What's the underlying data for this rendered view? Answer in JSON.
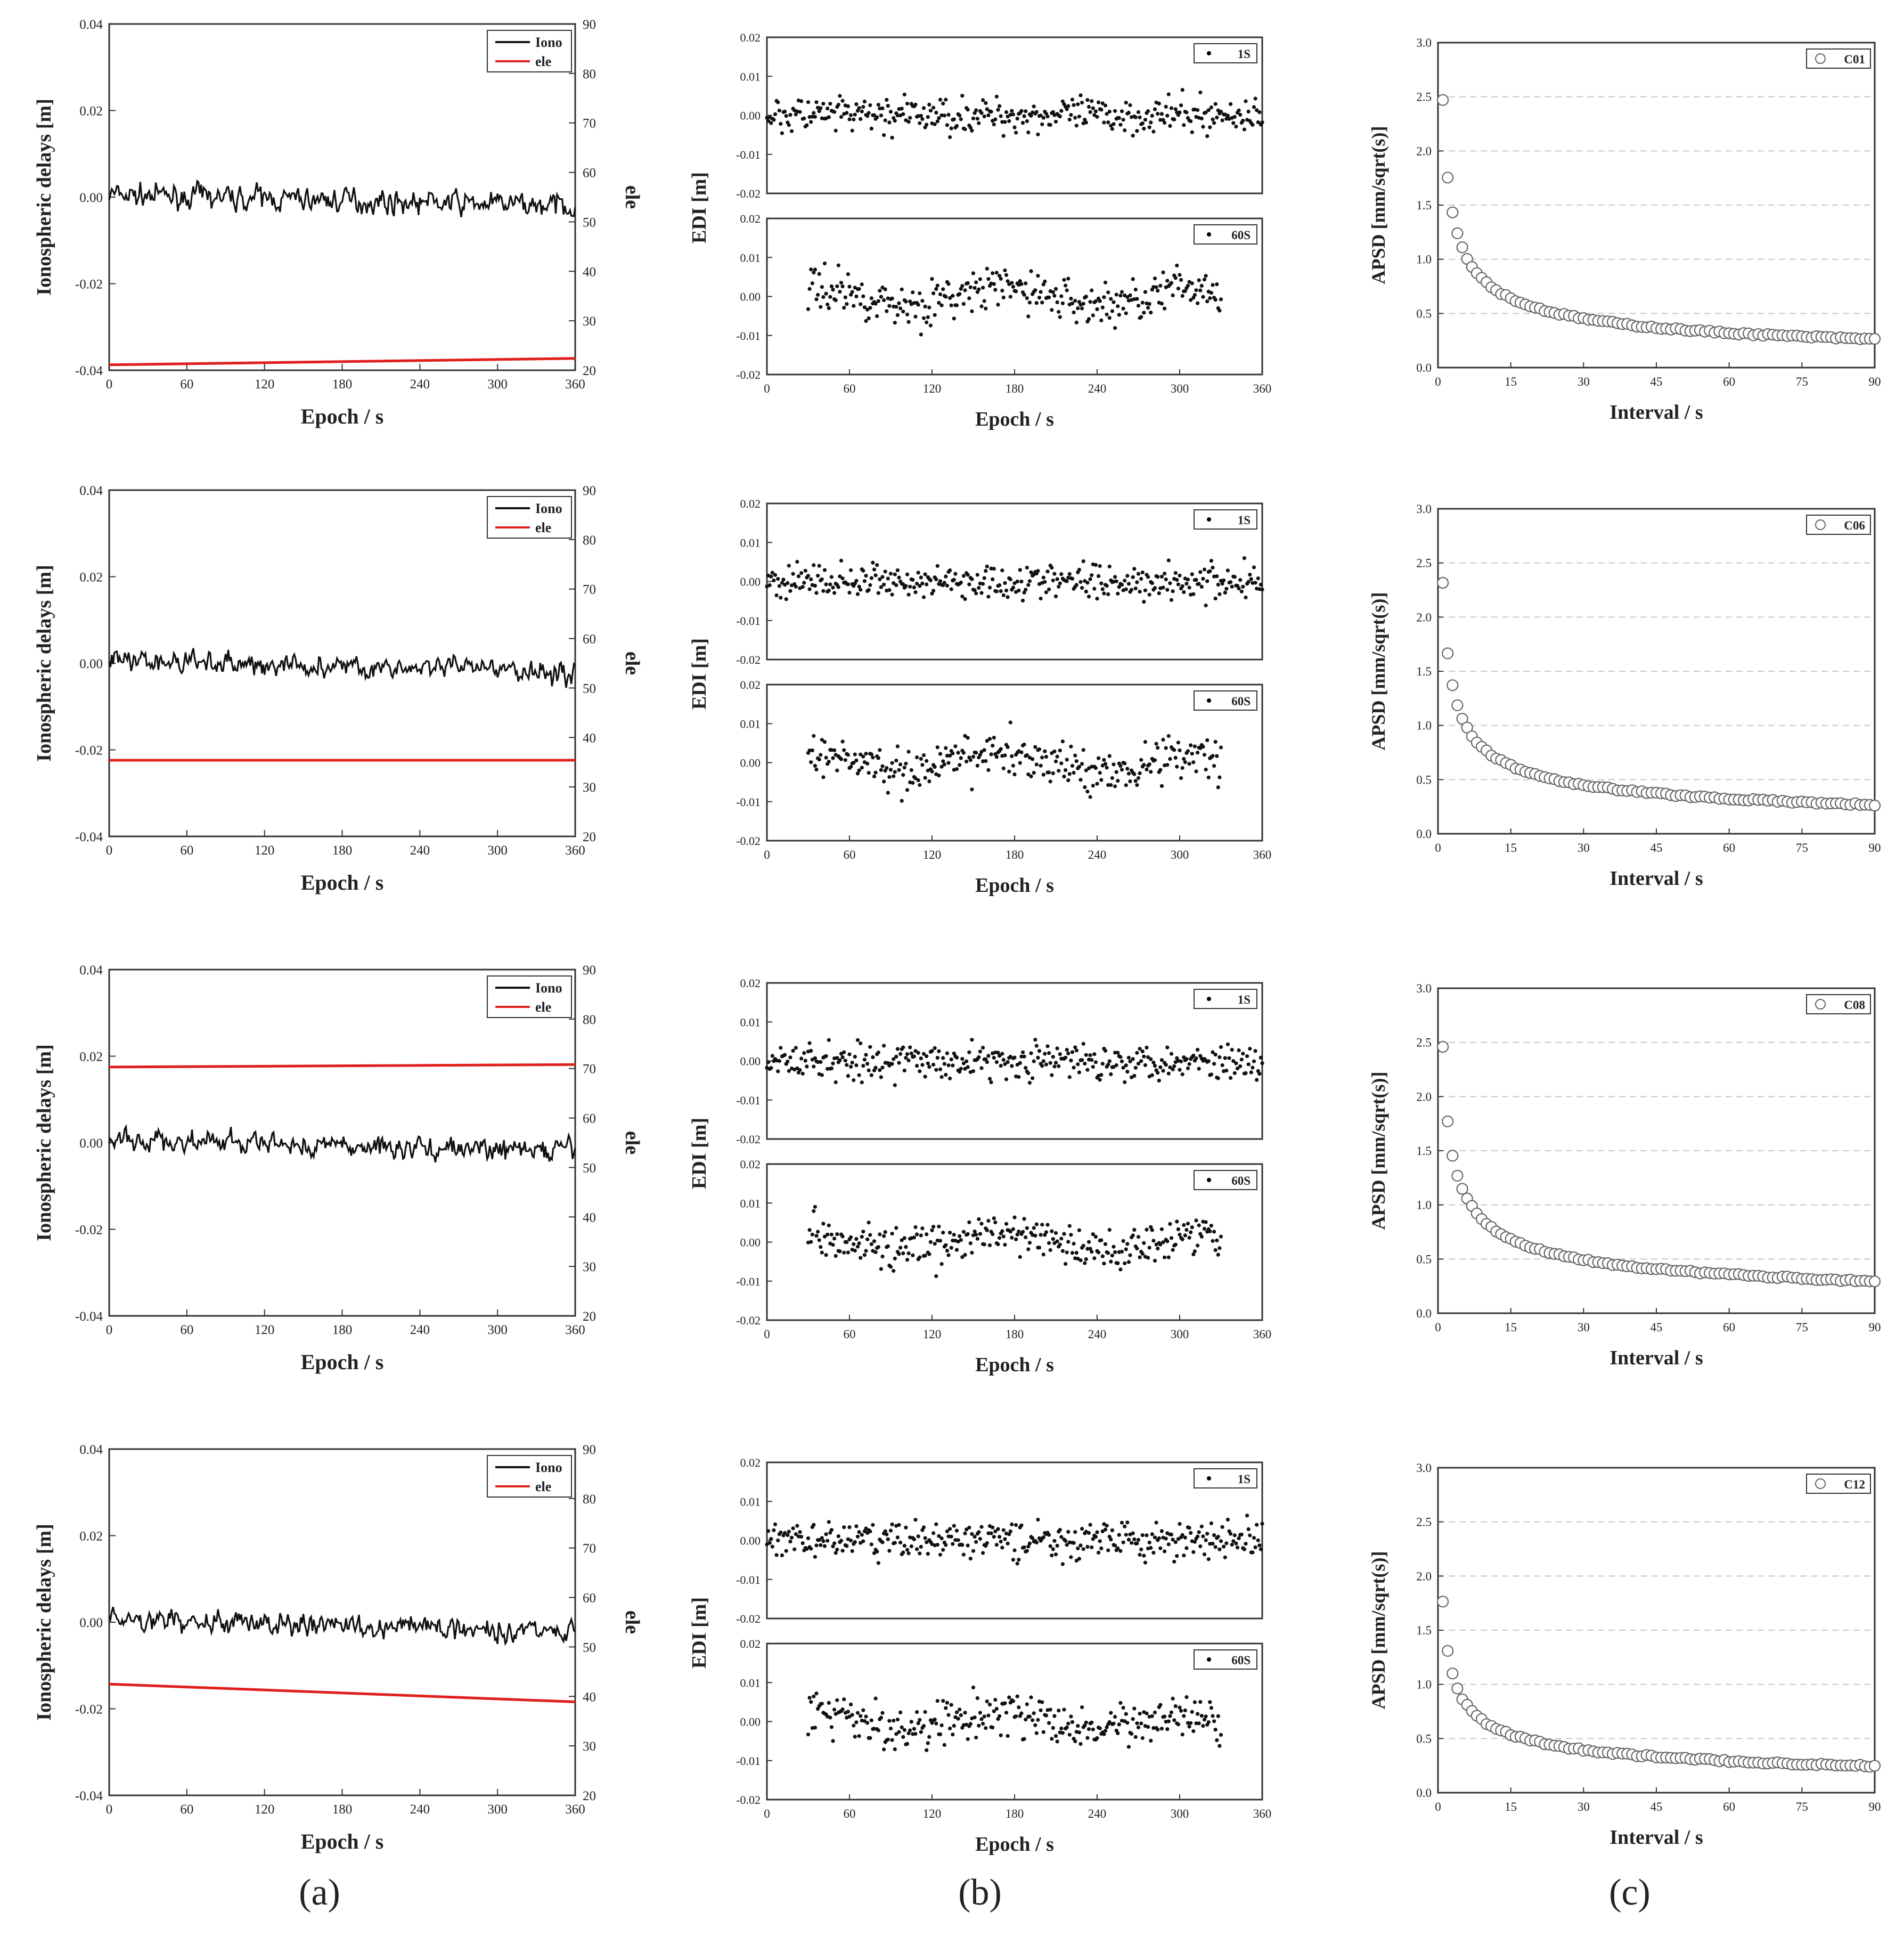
{
  "panel_labels": [
    "(a)",
    "(b)",
    "(c)"
  ],
  "rows": [
    {
      "iono": {
        "yleft_label": "Ionospheric delays [m]",
        "yright_label": "ele",
        "xlabel": "Epoch / s",
        "yleft_ticks": [
          "0.04",
          "0.02",
          "0.00",
          "-0.02",
          "-0.04"
        ],
        "yright_ticks": [
          "90",
          "80",
          "70",
          "60",
          "50",
          "40",
          "30",
          "20"
        ],
        "xticks": [
          "0",
          "60",
          "120",
          "180",
          "240",
          "300",
          "360"
        ],
        "legend": [
          "Iono",
          "ele"
        ],
        "ele_start": 21.1,
        "ele_end": 22.4
      },
      "edi": {
        "ylabel": "EDI [m]",
        "xlabel": "Epoch / s",
        "yticks": [
          "0.02",
          "0.01",
          "0.00",
          "-0.01",
          "-0.02"
        ],
        "xticks": [
          "0",
          "60",
          "120",
          "180",
          "240",
          "300",
          "360"
        ],
        "legend_top": "1S",
        "legend_bottom": "60S"
      },
      "apsd": {
        "ylabel": "APSD [mm/sqrt(s)]",
        "xlabel": "Interval / s",
        "yticks": [
          "3.0",
          "2.5",
          "2.0",
          "1.5",
          "1.0",
          "0.5",
          "0.0"
        ],
        "xticks": [
          "0",
          "15",
          "30",
          "45",
          "60",
          "75",
          "90"
        ],
        "legend": "C01",
        "a": 2.48,
        "b": 0.5
      }
    },
    {
      "iono": {
        "yleft_label": "Ionospheric delays [m]",
        "yright_label": "ele",
        "xlabel": "Epoch / s",
        "yleft_ticks": [
          "0.04",
          "0.02",
          "0.00",
          "-0.02",
          "-0.04"
        ],
        "yright_ticks": [
          "90",
          "80",
          "70",
          "60",
          "50",
          "40",
          "30",
          "20"
        ],
        "xticks": [
          "0",
          "60",
          "120",
          "180",
          "240",
          "300",
          "360"
        ],
        "legend": [
          "Iono",
          "ele"
        ],
        "ele_start": 35.4,
        "ele_end": 35.4
      },
      "edi": {
        "ylabel": "EDI [m]",
        "xlabel": "Epoch / s",
        "yticks": [
          "0.02",
          "0.01",
          "0.00",
          "-0.01",
          "-0.02"
        ],
        "xticks": [
          "0",
          "60",
          "120",
          "180",
          "240",
          "300",
          "360"
        ],
        "legend_top": "1S",
        "legend_bottom": "60S"
      },
      "apsd": {
        "ylabel": "APSD [mm/sqrt(s)]",
        "xlabel": "Interval / s",
        "yticks": [
          "3.0",
          "2.5",
          "2.0",
          "1.5",
          "1.0",
          "0.5",
          "0.0"
        ],
        "xticks": [
          "0",
          "15",
          "30",
          "45",
          "60",
          "75",
          "90"
        ],
        "legend": "C06",
        "a": 2.31,
        "b": 0.48
      }
    },
    {
      "iono": {
        "yleft_label": "Ionospheric delays [m]",
        "yright_label": "ele",
        "xlabel": "Epoch / s",
        "yleft_ticks": [
          "0.04",
          "0.02",
          "0.00",
          "-0.02",
          "-0.04"
        ],
        "yright_ticks": [
          "90",
          "80",
          "70",
          "60",
          "50",
          "40",
          "30",
          "20"
        ],
        "xticks": [
          "0",
          "60",
          "120",
          "180",
          "240",
          "300",
          "360"
        ],
        "legend": [
          "Iono",
          "ele"
        ],
        "ele_start": 70.3,
        "ele_end": 70.8
      },
      "edi": {
        "ylabel": "EDI [m]",
        "xlabel": "Epoch / s",
        "yticks": [
          "0.02",
          "0.01",
          "0.00",
          "-0.01",
          "-0.02"
        ],
        "xticks": [
          "0",
          "60",
          "120",
          "180",
          "240",
          "300",
          "360"
        ],
        "legend_top": "1S",
        "legend_bottom": "60S"
      },
      "apsd": {
        "ylabel": "APSD [mm/sqrt(s)]",
        "xlabel": "Interval / s",
        "yticks": [
          "3.0",
          "2.5",
          "2.0",
          "1.5",
          "1.0",
          "0.5",
          "0.0"
        ],
        "xticks": [
          "0",
          "15",
          "30",
          "45",
          "60",
          "75",
          "90"
        ],
        "legend": "C08",
        "a": 2.45,
        "b": 0.47
      }
    },
    {
      "iono": {
        "yleft_label": "Ionospheric delays [m]",
        "yright_label": "ele",
        "xlabel": "Epoch / s",
        "yleft_ticks": [
          "0.04",
          "0.02",
          "0.00",
          "-0.02",
          "-0.04"
        ],
        "yright_ticks": [
          "90",
          "80",
          "70",
          "60",
          "50",
          "40",
          "30",
          "20"
        ],
        "xticks": [
          "0",
          "60",
          "120",
          "180",
          "240",
          "300",
          "360"
        ],
        "legend": [
          "Iono",
          "ele"
        ],
        "ele_start": 42.5,
        "ele_end": 38.9
      },
      "edi": {
        "ylabel": "EDI [m]",
        "xlabel": "Epoch / s",
        "yticks": [
          "0.02",
          "0.01",
          "0.00",
          "-0.01",
          "-0.02"
        ],
        "xticks": [
          "0",
          "60",
          "120",
          "180",
          "240",
          "300",
          "360"
        ],
        "legend_top": "1S",
        "legend_bottom": "60S"
      },
      "apsd": {
        "ylabel": "APSD [mm/sqrt(s)]",
        "xlabel": "Interval / s",
        "yticks": [
          "3.0",
          "2.5",
          "2.0",
          "1.5",
          "1.0",
          "0.5",
          "0.0"
        ],
        "xticks": [
          "0",
          "15",
          "30",
          "45",
          "60",
          "75",
          "90"
        ],
        "legend": "C12",
        "a": 1.77,
        "b": 0.44
      }
    }
  ],
  "chart_data": [
    {
      "type": "line",
      "panel": "a",
      "title": "",
      "xlabel": "Epoch / s",
      "ylabel": "Ionospheric delays [m]",
      "y2label": "ele",
      "xlim": [
        0,
        360
      ],
      "ylim": [
        -0.04,
        0.04
      ],
      "y2lim": [
        20,
        90
      ],
      "series": [
        {
          "name": "Iono",
          "note": "noisy series, about 0.000 m with amplitude ±0.005 m per row"
        },
        {
          "name": "ele",
          "rows": [
            {
              "start": 21.1,
              "end": 22.4
            },
            {
              "start": 35.4,
              "end": 35.4
            },
            {
              "start": 70.3,
              "end": 70.8
            },
            {
              "start": 42.5,
              "end": 38.9
            }
          ]
        }
      ]
    },
    {
      "type": "scatter",
      "panel": "b",
      "xlabel": "Epoch / s",
      "ylabel": "EDI [m]",
      "xlim": [
        0,
        360
      ],
      "ylim": [
        -0.02,
        0.02
      ],
      "series": [
        {
          "name": "1S",
          "x_range": [
            0,
            360
          ],
          "approx_spread": 0.006
        },
        {
          "name": "60S",
          "x_range": [
            30,
            330
          ],
          "approx_spread": 0.007
        }
      ]
    },
    {
      "type": "scatter",
      "panel": "c",
      "xlabel": "Interval / s",
      "ylabel": "APSD [mm/sqrt(s)]",
      "xlim": [
        0,
        90
      ],
      "ylim": [
        0,
        3
      ],
      "series": [
        {
          "name": "C01",
          "x": [
            1,
            2,
            3,
            4,
            5,
            10,
            20,
            30,
            45,
            60,
            75,
            90
          ],
          "values": [
            2.48,
            1.84,
            1.48,
            1.31,
            1.18,
            0.84,
            0.6,
            0.5,
            0.42,
            0.38,
            0.33,
            0.31
          ]
        },
        {
          "name": "C06",
          "x": [
            1,
            2,
            3,
            4,
            5,
            10,
            20,
            30,
            45,
            60,
            75,
            90
          ],
          "values": [
            2.31,
            1.61,
            1.29,
            1.16,
            1.02,
            0.73,
            0.53,
            0.44,
            0.36,
            0.31,
            0.28,
            0.26
          ]
        },
        {
          "name": "C08",
          "x": [
            1,
            2,
            3,
            4,
            5,
            10,
            20,
            30,
            45,
            60,
            75,
            90
          ],
          "values": [
            2.45,
            1.72,
            1.52,
            1.27,
            1.15,
            0.83,
            0.65,
            0.54,
            0.45,
            0.39,
            0.35,
            0.33
          ]
        },
        {
          "name": "C12",
          "x": [
            1,
            2,
            3,
            4,
            5,
            10,
            20,
            30,
            45,
            60,
            75,
            90
          ],
          "values": [
            1.77,
            1.29,
            1.09,
            0.99,
            0.88,
            0.64,
            0.49,
            0.42,
            0.35,
            0.31,
            0.27,
            0.26
          ]
        }
      ]
    }
  ]
}
